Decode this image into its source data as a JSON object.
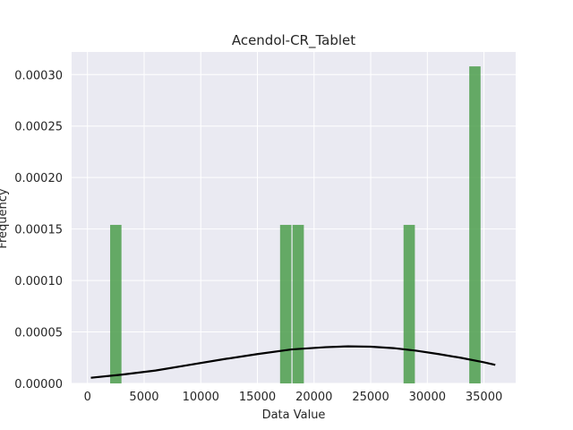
{
  "chart_data": {
    "type": "bar",
    "title": "Acendol-CR_Tablet",
    "xlabel": "Data Value",
    "ylabel": "Frequency",
    "xlim": [
      -1400,
      37800
    ],
    "ylim": [
      0,
      0.000322
    ],
    "x_ticks": [
      0,
      5000,
      10000,
      15000,
      20000,
      25000,
      30000,
      35000
    ],
    "x_tick_labels": [
      "0",
      "5000",
      "10000",
      "15000",
      "20000",
      "25000",
      "30000",
      "35000"
    ],
    "y_ticks": [
      0,
      5e-05,
      0.0001,
      0.00015,
      0.0002,
      0.00025,
      0.0003
    ],
    "y_tick_labels": [
      "0.00000",
      "0.00005",
      "0.00010",
      "0.00015",
      "0.00020",
      "0.00025",
      "0.00030"
    ],
    "grid": true,
    "bars": [
      {
        "x0": 2000,
        "x1": 3000,
        "value": 0.000154
      },
      {
        "x0": 17000,
        "x1": 18000,
        "value": 0.000154
      },
      {
        "x0": 18100,
        "x1": 19100,
        "value": 0.000154
      },
      {
        "x0": 27900,
        "x1": 28900,
        "value": 0.000154
      },
      {
        "x0": 33700,
        "x1": 34700,
        "value": 0.000308
      }
    ],
    "bar_color": "#4c9e4c",
    "curve_color": "#000000",
    "background_color": "#eaeaf2",
    "grid_color": "#ffffff",
    "density_curve": {
      "x": [
        300,
        3000,
        6000,
        9000,
        12000,
        15000,
        18000,
        21000,
        23000,
        25000,
        27000,
        29000,
        31000,
        33000,
        35000,
        36000
      ],
      "y": [
        5.5e-06,
        8.5e-06,
        1.25e-05,
        1.8e-05,
        2.35e-05,
        2.85e-05,
        3.3e-05,
        3.52e-05,
        3.6e-05,
        3.57e-05,
        3.43e-05,
        3.18e-05,
        2.85e-05,
        2.48e-05,
        2.05e-05,
        1.8e-05
      ]
    }
  }
}
